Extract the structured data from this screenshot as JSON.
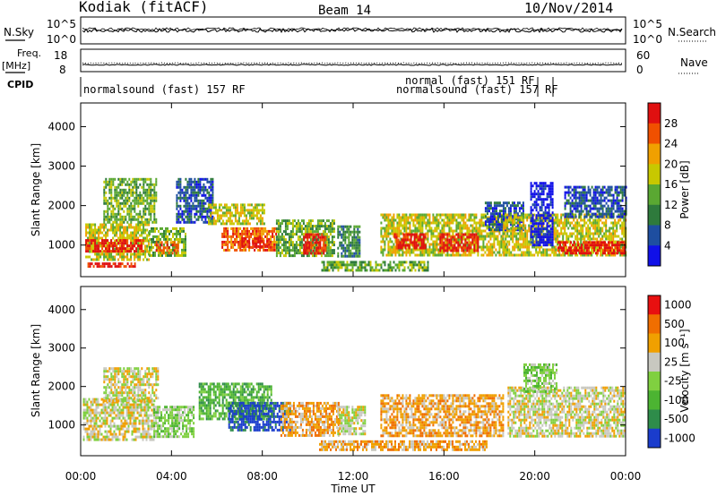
{
  "header": {
    "station": "Kodiak (fitACF)",
    "beam": "Beam 14",
    "date": "10/Nov/2014"
  },
  "summary_panels": {
    "nsky": {
      "label": "N.Sky",
      "ticks": [
        "10^5",
        "10^0"
      ],
      "right_label": "N.Search",
      "right_ticks": [
        "10^5",
        "10^0"
      ]
    },
    "freq": {
      "label_line1": "Freq.",
      "label_line2": "[MHz]",
      "ticks": [
        "18",
        "8"
      ],
      "right_label": "Nave",
      "right_ticks": [
        "60",
        "0"
      ]
    },
    "cpid": {
      "label": "CPID",
      "segments": [
        {
          "text": "normalsound (fast) 157 RF",
          "row": 1
        },
        {
          "text": "normal (fast) 151 RF",
          "row": 0
        },
        {
          "text": "normalsound (fast) 157 RF",
          "row": 1
        }
      ]
    }
  },
  "chart_data": [
    {
      "type": "heatmap",
      "name": "power",
      "ylabel": "Slant Range [km]",
      "yticks": [
        1000,
        2000,
        3000,
        4000
      ],
      "ylim": [
        200,
        4600
      ],
      "xlim_hours": [
        0,
        24
      ],
      "colorbar": {
        "label": "Power [dB]",
        "ticks": [
          "4",
          "8",
          "12",
          "16",
          "20",
          "24",
          "28"
        ],
        "colors": [
          "#1010e8",
          "#1e4ea0",
          "#2e7a3c",
          "#5aa832",
          "#c8c800",
          "#f0a000",
          "#f05000",
          "#e01010"
        ]
      },
      "regions": [
        {
          "t0": 0.2,
          "t1": 3.0,
          "r0": 650,
          "r1": 1550,
          "level": 4
        },
        {
          "t0": 0.2,
          "t1": 2.8,
          "r0": 850,
          "r1": 1150,
          "level": 7
        },
        {
          "t0": 0.3,
          "t1": 2.4,
          "r0": 450,
          "r1": 560,
          "level": 7
        },
        {
          "t0": 1.0,
          "t1": 3.3,
          "r0": 1600,
          "r1": 2700,
          "level": 3
        },
        {
          "t0": 3.0,
          "t1": 4.6,
          "r0": 750,
          "r1": 1450,
          "level": 3
        },
        {
          "t0": 3.3,
          "t1": 4.3,
          "r0": 820,
          "r1": 1100,
          "level": 6
        },
        {
          "t0": 4.2,
          "t1": 5.8,
          "r0": 1600,
          "r1": 2700,
          "level": 1
        },
        {
          "t0": 5.6,
          "t1": 8.1,
          "r0": 1550,
          "r1": 2050,
          "level": 4
        },
        {
          "t0": 6.2,
          "t1": 8.6,
          "r0": 850,
          "r1": 1450,
          "level": 6
        },
        {
          "t0": 7.0,
          "t1": 8.2,
          "r0": 950,
          "r1": 1200,
          "level": 7
        },
        {
          "t0": 8.6,
          "t1": 11.2,
          "r0": 700,
          "r1": 1650,
          "level": 3
        },
        {
          "t0": 9.8,
          "t1": 10.8,
          "r0": 800,
          "r1": 1300,
          "level": 7
        },
        {
          "t0": 11.3,
          "t1": 12.3,
          "r0": 700,
          "r1": 1500,
          "level": 2
        },
        {
          "t0": 10.6,
          "t1": 15.3,
          "r0": 330,
          "r1": 600,
          "level": 3
        },
        {
          "t0": 13.2,
          "t1": 18.8,
          "r0": 750,
          "r1": 1800,
          "level": 4
        },
        {
          "t0": 13.8,
          "t1": 15.2,
          "r0": 900,
          "r1": 1300,
          "level": 7
        },
        {
          "t0": 15.8,
          "t1": 17.5,
          "r0": 850,
          "r1": 1300,
          "level": 7
        },
        {
          "t0": 17.8,
          "t1": 19.5,
          "r0": 1400,
          "r1": 2100,
          "level": 1
        },
        {
          "t0": 18.6,
          "t1": 24.0,
          "r0": 750,
          "r1": 1800,
          "level": 4
        },
        {
          "t0": 19.8,
          "t1": 20.8,
          "r0": 1000,
          "r1": 2600,
          "level": 0
        },
        {
          "t0": 21.0,
          "t1": 24.0,
          "r0": 800,
          "r1": 1100,
          "level": 7
        },
        {
          "t0": 21.3,
          "t1": 24.0,
          "r0": 1700,
          "r1": 2500,
          "level": 1
        }
      ]
    },
    {
      "type": "heatmap",
      "name": "velocity",
      "ylabel": "Slant Range [km]",
      "yticks": [
        1000,
        2000,
        3000,
        4000
      ],
      "ylim": [
        200,
        4600
      ],
      "xlim_hours": [
        0,
        24
      ],
      "xticks": [
        "00:00",
        "04:00",
        "08:00",
        "12:00",
        "16:00",
        "20:00",
        "00:00"
      ],
      "xlabel": "Time UT",
      "colorbar": {
        "label": "Velocity [m s⁻¹]",
        "ticks": [
          "1000",
          "500",
          "100",
          "25",
          "-25",
          "-100",
          "-500",
          "-1000"
        ],
        "colors": [
          "#1a3ccc",
          "#2e8c4a",
          "#4cb432",
          "#80d040",
          "#c8c8c0",
          "#f0a000",
          "#f06e00",
          "#e81010"
        ]
      },
      "regions": [
        {
          "t0": 0.1,
          "t1": 3.2,
          "r0": 600,
          "r1": 1700,
          "level": 4
        },
        {
          "t0": 1.0,
          "t1": 3.4,
          "r0": 1600,
          "r1": 2500,
          "level": 4
        },
        {
          "t0": 3.2,
          "t1": 5.0,
          "r0": 700,
          "r1": 1500,
          "level": 3
        },
        {
          "t0": 5.2,
          "t1": 8.4,
          "r0": 1150,
          "r1": 2100,
          "level": 2
        },
        {
          "t0": 6.5,
          "t1": 9.2,
          "r0": 900,
          "r1": 1600,
          "level": 0
        },
        {
          "t0": 8.8,
          "t1": 11.4,
          "r0": 700,
          "r1": 1600,
          "level": 5
        },
        {
          "t0": 11.3,
          "t1": 12.5,
          "r0": 800,
          "r1": 1500,
          "level": 4
        },
        {
          "t0": 10.5,
          "t1": 18.0,
          "r0": 350,
          "r1": 600,
          "level": 5
        },
        {
          "t0": 13.2,
          "t1": 18.6,
          "r0": 750,
          "r1": 1800,
          "level": 5
        },
        {
          "t0": 18.8,
          "t1": 24.0,
          "r0": 700,
          "r1": 2000,
          "level": 4
        },
        {
          "t0": 19.5,
          "t1": 21.0,
          "r0": 1900,
          "r1": 2600,
          "level": 3
        }
      ]
    }
  ]
}
